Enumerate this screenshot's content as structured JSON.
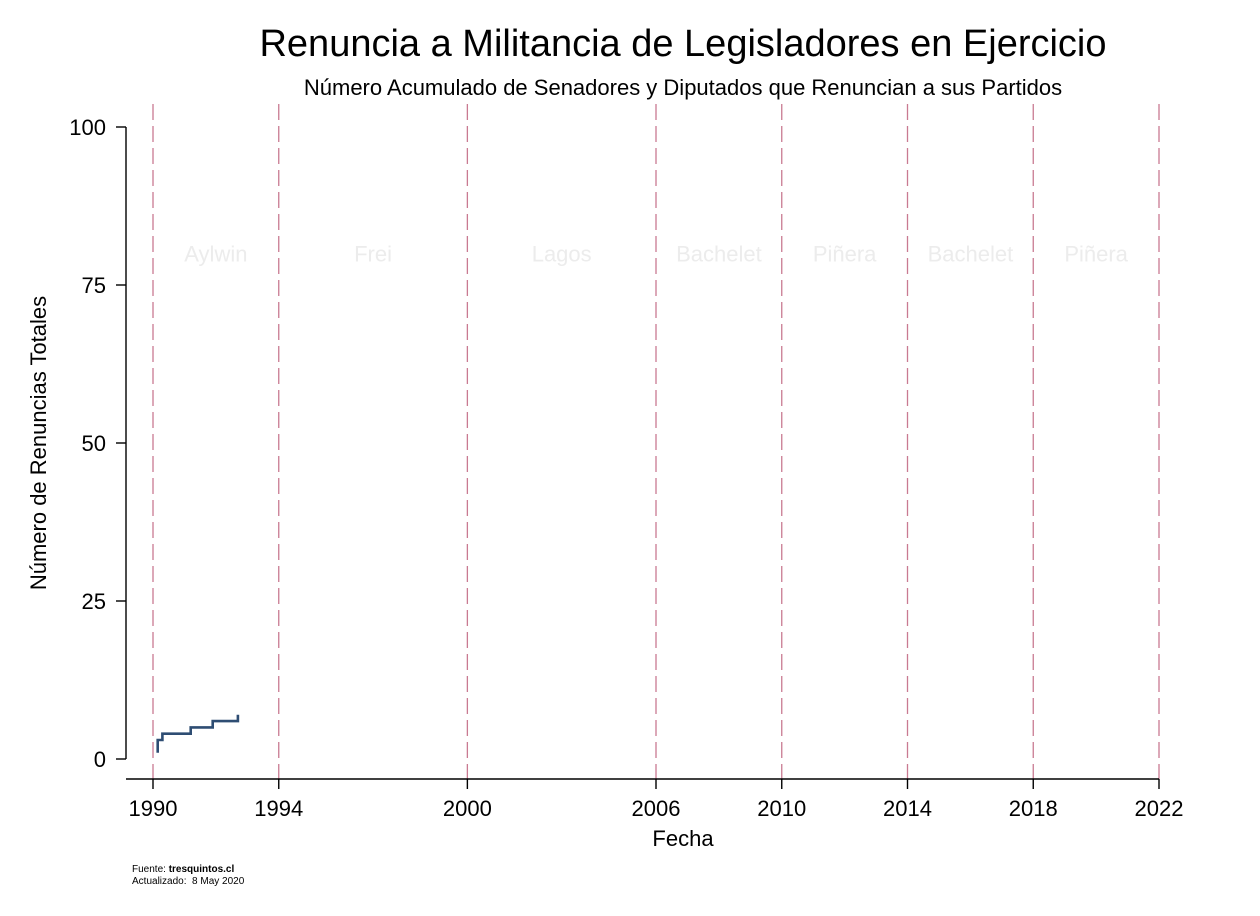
{
  "chart_data": {
    "type": "line",
    "title": "Renuncia a Militancia de Legisladores en Ejercicio",
    "subtitle": "Número Acumulado de Senadores y Diputados que Renuncian a sus Partidos",
    "xlabel": "Fecha",
    "ylabel": "Número de Renuncias Totales",
    "xlim": [
      1990,
      2022
    ],
    "ylim": [
      0,
      100
    ],
    "x_ticks": [
      1990,
      1994,
      2000,
      2006,
      2010,
      2014,
      2018,
      2022
    ],
    "y_ticks": [
      0,
      25,
      50,
      75,
      100
    ],
    "step": true,
    "series": [
      {
        "color": "#2e4d73",
        "points": [
          [
            1990.15,
            1
          ],
          [
            1990.15,
            3
          ],
          [
            1990.3,
            3
          ],
          [
            1990.3,
            4
          ],
          [
            1991.2,
            4
          ],
          [
            1991.2,
            5
          ],
          [
            1991.9,
            5
          ],
          [
            1991.9,
            6
          ],
          [
            1992.7,
            6
          ],
          [
            1992.7,
            7
          ]
        ]
      }
    ],
    "vlines": [
      1990,
      1994,
      2000,
      2006,
      2010,
      2014,
      2018,
      2022
    ],
    "vline_color": "#c97a92",
    "eras": [
      {
        "label": "Aylwin",
        "start": 1990,
        "end": 1994
      },
      {
        "label": "Frei",
        "start": 1994,
        "end": 2000
      },
      {
        "label": "Lagos",
        "start": 2000,
        "end": 2006
      },
      {
        "label": "Bachelet",
        "start": 2006,
        "end": 2010
      },
      {
        "label": "Piñera",
        "start": 2010,
        "end": 2014
      },
      {
        "label": "Bachelet",
        "start": 2014,
        "end": 2018
      },
      {
        "label": "Piñera",
        "start": 2018,
        "end": 2022
      }
    ],
    "era_label_y": 80
  },
  "footer": {
    "source_prefix": "Fuente: ",
    "source_name": "tresquintos.cl",
    "updated_label": "Actualizado:",
    "updated_date": "8 May 2020"
  }
}
